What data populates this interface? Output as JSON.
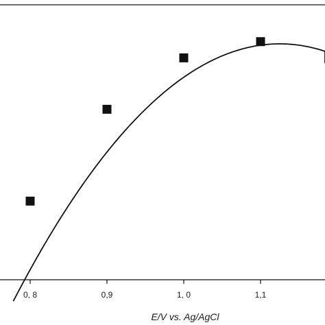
{
  "chart_data": {
    "type": "scatter",
    "title": "",
    "xlabel": "E/V vs. Ag/AgCl",
    "ylabel": "",
    "xlim": [
      0.72,
      1.22
    ],
    "ylim": [
      0,
      1
    ],
    "x_ticks": [
      0.8,
      0.9,
      1.0,
      1.1
    ],
    "x_tick_labels": [
      "0, 8",
      "0,9",
      "1, 0",
      "1,1"
    ],
    "grid": false,
    "legend": "none",
    "series": [
      {
        "marker": "square",
        "color": "#111111",
        "points": [
          {
            "x": 0.8,
            "y": 0.286
          },
          {
            "x": 0.9,
            "y": 0.62
          },
          {
            "x": 1.0,
            "y": 0.807
          },
          {
            "x": 1.1,
            "y": 0.866
          }
        ]
      }
    ],
    "fit_curve": {
      "kind": "quadratic",
      "color": "#111111",
      "x_range": [
        0.778,
        1.22
      ],
      "peak": {
        "x": 1.125,
        "y": 0.858
      },
      "a": -7.775
    }
  }
}
